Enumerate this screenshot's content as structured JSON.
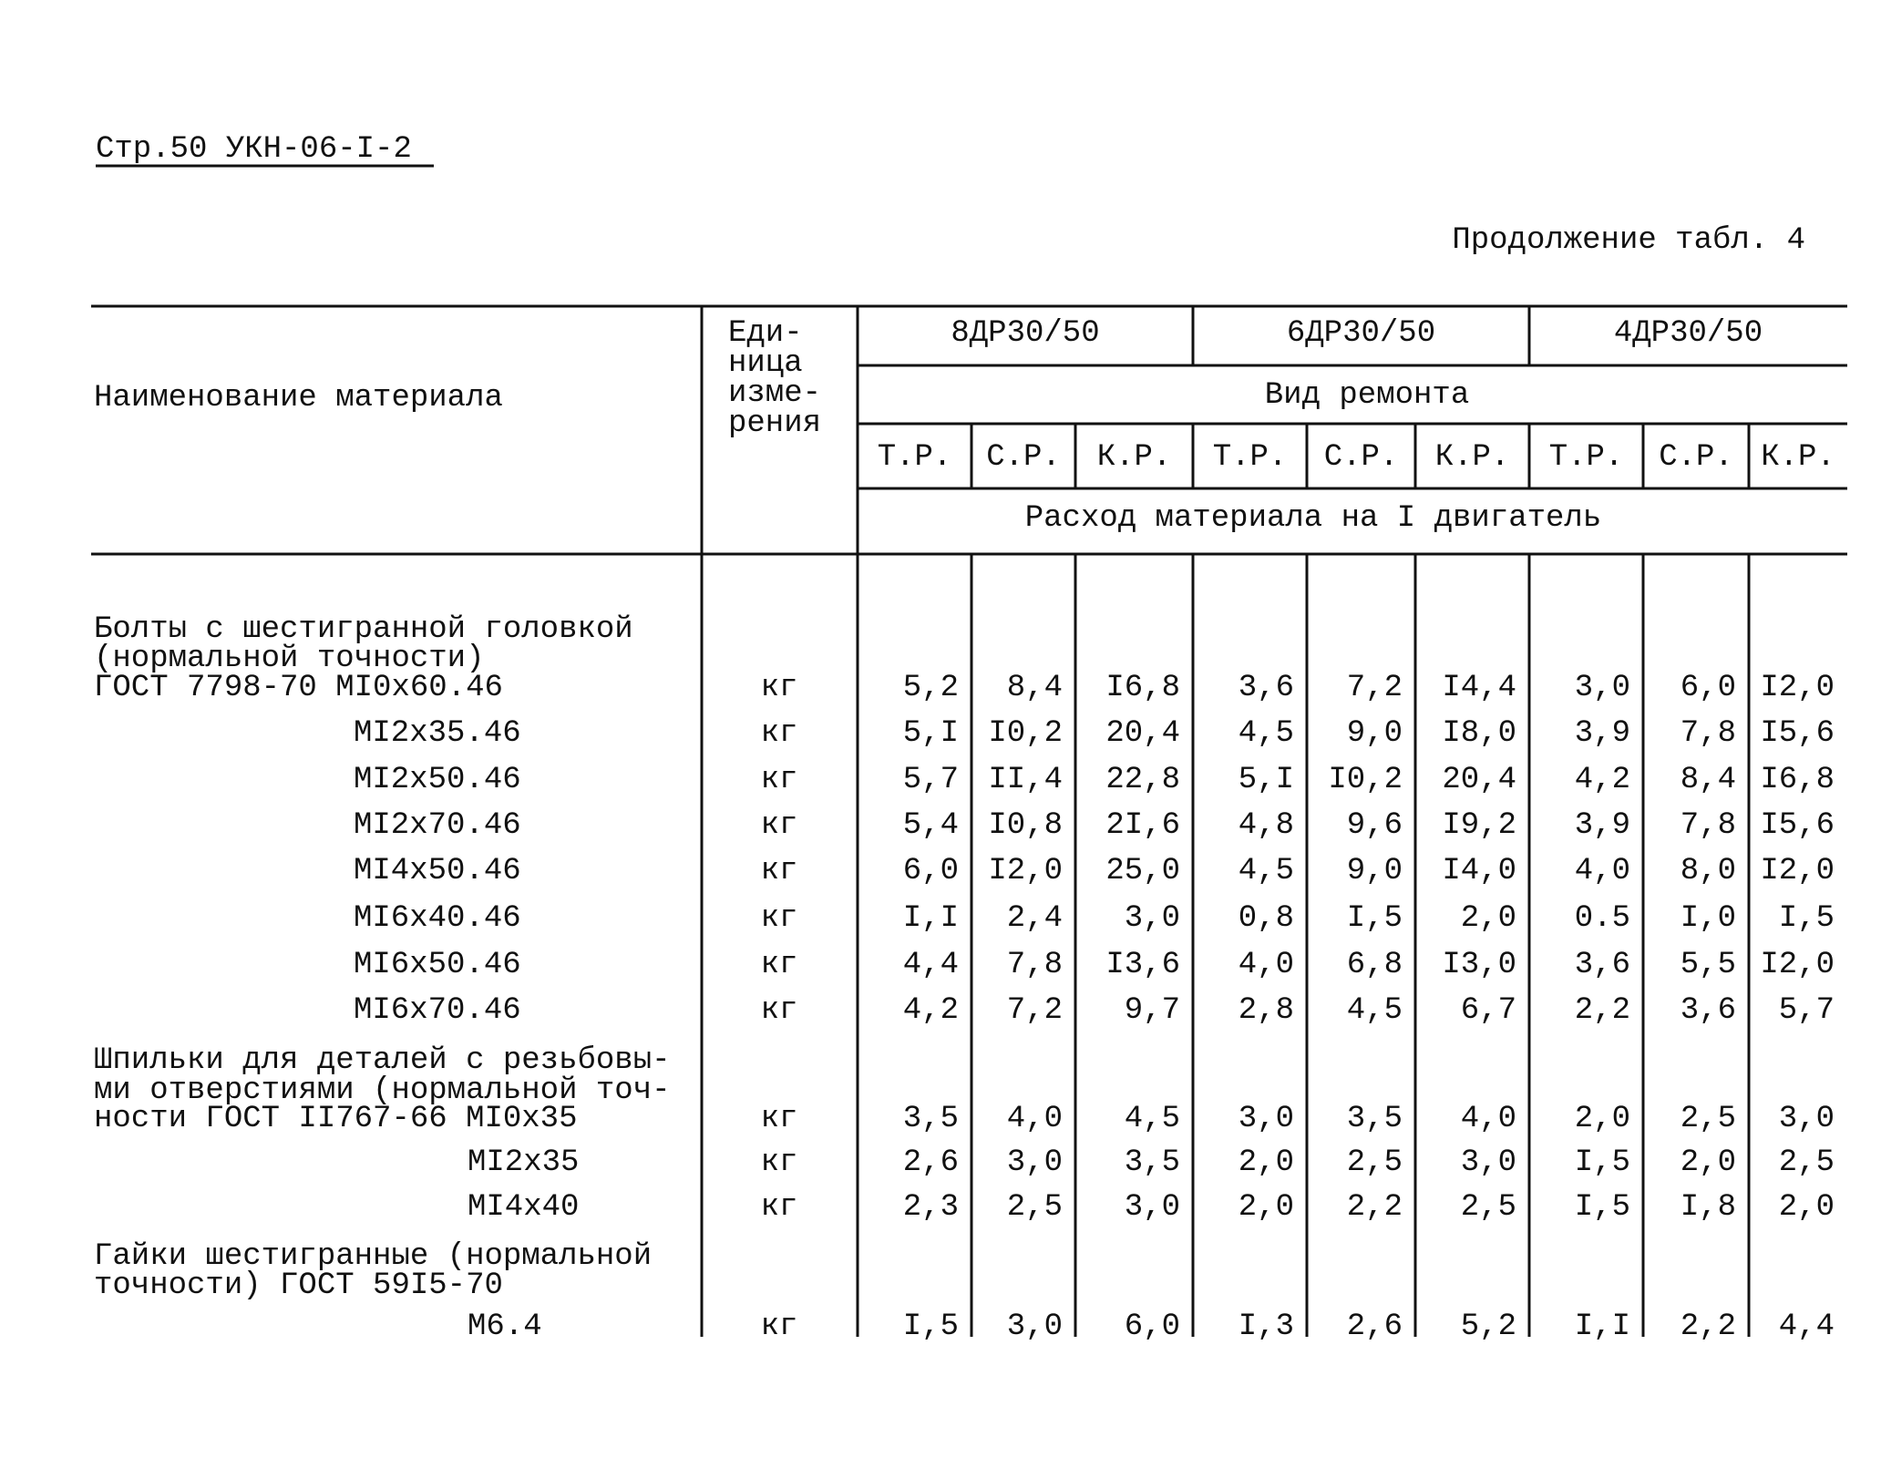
{
  "header": {
    "page": "Стр.50  УКН-06-I-2",
    "continuation": "Продолжение табл. 4"
  },
  "table": {
    "columns": {
      "name": "Наименование материала",
      "unit": [
        "Еди-",
        "ница",
        "изме-",
        "рения"
      ],
      "engines": [
        "8ДР30/50",
        "6ДР30/50",
        "4ДР30/50"
      ],
      "repair_type": "Вид ремонта",
      "repair_kinds": [
        "Т.Р.",
        "С.Р.",
        "К.Р."
      ],
      "consumption": "Расход материала на I двигатель"
    },
    "groups": [
      {
        "label": [
          "Болты с шестигранной головкой",
          "(нормальной точности)"
        ],
        "rows": [
          {
            "name": "ГОСТ 7798-70  МI0х60.46",
            "unit": "кг",
            "values": [
              "5,2",
              "8,4",
              "I6,8",
              "3,6",
              "7,2",
              "I4,4",
              "3,0",
              "6,0",
              "I2,0"
            ]
          },
          {
            "name": "МI2х35.46",
            "unit": "кг",
            "values": [
              "5,I",
              "I0,2",
              "20,4",
              "4,5",
              "9,0",
              "I8,0",
              "3,9",
              "7,8",
              "I5,6"
            ]
          },
          {
            "name": "МI2х50.46",
            "unit": "кг",
            "values": [
              "5,7",
              "II,4",
              "22,8",
              "5,I",
              "I0,2",
              "20,4",
              "4,2",
              "8,4",
              "I6,8"
            ]
          },
          {
            "name": "МI2х70.46",
            "unit": "кг",
            "values": [
              "5,4",
              "I0,8",
              "2I,6",
              "4,8",
              "9,6",
              "I9,2",
              "3,9",
              "7,8",
              "I5,6"
            ]
          },
          {
            "name": "МI4х50.46",
            "unit": "кг",
            "values": [
              "6,0",
              "I2,0",
              "25,0",
              "4,5",
              "9,0",
              "I4,0",
              "4,0",
              "8,0",
              "I2,0"
            ]
          },
          {
            "name": "МI6х40.46",
            "unit": "кг",
            "values": [
              "I,I",
              "2,4",
              "3,0",
              "0,8",
              "I,5",
              "2,0",
              "0.5",
              "I,0",
              "I,5"
            ]
          },
          {
            "name": "МI6х50.46",
            "unit": "кг",
            "values": [
              "4,4",
              "7,8",
              "I3,6",
              "4,0",
              "6,8",
              "I3,0",
              "3,6",
              "5,5",
              "I2,0"
            ]
          },
          {
            "name": "МI6х70.46",
            "unit": "кг",
            "values": [
              "4,2",
              "7,2",
              "9,7",
              "2,8",
              "4,5",
              "6,7",
              "2,2",
              "3,6",
              "5,7"
            ]
          }
        ]
      },
      {
        "label": [
          "Шпильки для деталей с резьбовы-",
          "ми отверстиями (нормальной точ-"
        ],
        "rows": [
          {
            "name": "ности ГОСТ II767-66 МI0х35",
            "unit": "кг",
            "values": [
              "3,5",
              "4,0",
              "4,5",
              "3,0",
              "3,5",
              "4,0",
              "2,0",
              "2,5",
              "3,0"
            ]
          },
          {
            "name": "МI2х35",
            "unit": "кг",
            "values": [
              "2,6",
              "3,0",
              "3,5",
              "2,0",
              "2,5",
              "3,0",
              "I,5",
              "2,0",
              "2,5"
            ]
          },
          {
            "name": "МI4х40",
            "unit": "кг",
            "values": [
              "2,3",
              "2,5",
              "3,0",
              "2,0",
              "2,2",
              "2,5",
              "I,5",
              "I,8",
              "2,0"
            ]
          }
        ]
      },
      {
        "label": [
          "Гайки шестигранные (нормальной",
          "точности) ГОСТ 59I5-70"
        ],
        "rows": [
          {
            "name": "М6.4",
            "unit": "кг",
            "values": [
              "I,5",
              "3,0",
              "6,0",
              "I,3",
              "2,6",
              "5,2",
              "I,I",
              "2,2",
              "4,4"
            ]
          }
        ]
      }
    ]
  }
}
